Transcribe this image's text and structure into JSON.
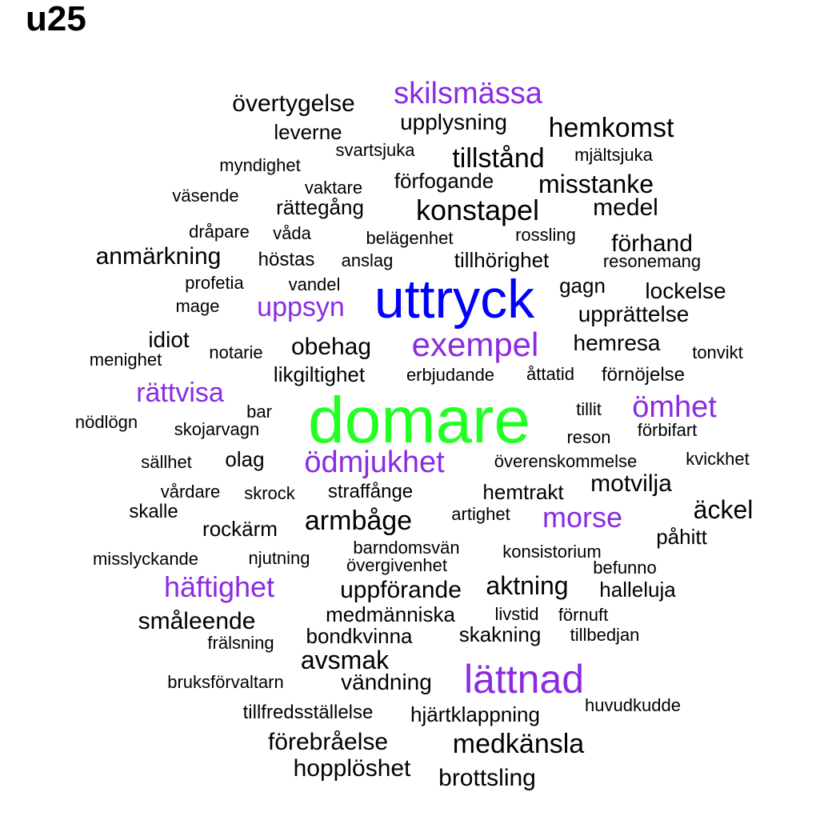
{
  "title": "u25",
  "colors": {
    "top": "#22ff22",
    "second": "#0000ff",
    "highlight": "#8a2be2",
    "default": "#000000"
  },
  "words": [
    {
      "text": "skilsmässa",
      "tier": "highlight"
    },
    {
      "text": "övertygelse",
      "tier": "default"
    },
    {
      "text": "upplysning",
      "tier": "default"
    },
    {
      "text": "hemkomst",
      "tier": "default"
    },
    {
      "text": "leverne",
      "tier": "default"
    },
    {
      "text": "svartsjuka",
      "tier": "default"
    },
    {
      "text": "tillstånd",
      "tier": "default"
    },
    {
      "text": "mjältsjuka",
      "tier": "default"
    },
    {
      "text": "myndighet",
      "tier": "default"
    },
    {
      "text": "förfogande",
      "tier": "default"
    },
    {
      "text": "misstanke",
      "tier": "default"
    },
    {
      "text": "väsende",
      "tier": "default"
    },
    {
      "text": "vaktare",
      "tier": "default"
    },
    {
      "text": "rättegång",
      "tier": "default"
    },
    {
      "text": "konstapel",
      "tier": "default"
    },
    {
      "text": "medel",
      "tier": "default"
    },
    {
      "text": "dråpare",
      "tier": "default"
    },
    {
      "text": "våda",
      "tier": "default"
    },
    {
      "text": "belägenhet",
      "tier": "default"
    },
    {
      "text": "rossling",
      "tier": "default"
    },
    {
      "text": "förhand",
      "tier": "default"
    },
    {
      "text": "anmärkning",
      "tier": "default"
    },
    {
      "text": "höstas",
      "tier": "default"
    },
    {
      "text": "anslag",
      "tier": "default"
    },
    {
      "text": "tillhörighet",
      "tier": "default"
    },
    {
      "text": "resonemang",
      "tier": "default"
    },
    {
      "text": "profetia",
      "tier": "default"
    },
    {
      "text": "vandel",
      "tier": "default"
    },
    {
      "text": "uttryck",
      "tier": "second"
    },
    {
      "text": "gagn",
      "tier": "default"
    },
    {
      "text": "lockelse",
      "tier": "default"
    },
    {
      "text": "mage",
      "tier": "default"
    },
    {
      "text": "uppsyn",
      "tier": "highlight"
    },
    {
      "text": "upprättelse",
      "tier": "default"
    },
    {
      "text": "idiot",
      "tier": "default"
    },
    {
      "text": "obehag",
      "tier": "default"
    },
    {
      "text": "exempel",
      "tier": "highlight"
    },
    {
      "text": "hemresa",
      "tier": "default"
    },
    {
      "text": "menighet",
      "tier": "default"
    },
    {
      "text": "notarie",
      "tier": "default"
    },
    {
      "text": "tonvikt",
      "tier": "default"
    },
    {
      "text": "likgiltighet",
      "tier": "default"
    },
    {
      "text": "erbjudande",
      "tier": "default"
    },
    {
      "text": "åttatid",
      "tier": "default"
    },
    {
      "text": "förnöjelse",
      "tier": "default"
    },
    {
      "text": "rättvisa",
      "tier": "highlight"
    },
    {
      "text": "ömhet",
      "tier": "highlight"
    },
    {
      "text": "tillit",
      "tier": "default"
    },
    {
      "text": "nödlögn",
      "tier": "default"
    },
    {
      "text": "bar",
      "tier": "default"
    },
    {
      "text": "domare",
      "tier": "top"
    },
    {
      "text": "skojarvagn",
      "tier": "default"
    },
    {
      "text": "förbifart",
      "tier": "default"
    },
    {
      "text": "reson",
      "tier": "default"
    },
    {
      "text": "sällhet",
      "tier": "default"
    },
    {
      "text": "olag",
      "tier": "default"
    },
    {
      "text": "ödmjukhet",
      "tier": "highlight"
    },
    {
      "text": "överenskommelse",
      "tier": "default"
    },
    {
      "text": "kvickhet",
      "tier": "default"
    },
    {
      "text": "vårdare",
      "tier": "default"
    },
    {
      "text": "skrock",
      "tier": "default"
    },
    {
      "text": "straffånge",
      "tier": "default"
    },
    {
      "text": "hemtrakt",
      "tier": "default"
    },
    {
      "text": "motvilja",
      "tier": "default"
    },
    {
      "text": "skalle",
      "tier": "default"
    },
    {
      "text": "armbåge",
      "tier": "default"
    },
    {
      "text": "artighet",
      "tier": "default"
    },
    {
      "text": "morse",
      "tier": "highlight"
    },
    {
      "text": "äckel",
      "tier": "default"
    },
    {
      "text": "rockärm",
      "tier": "default"
    },
    {
      "text": "påhitt",
      "tier": "default"
    },
    {
      "text": "barndomsvän",
      "tier": "default"
    },
    {
      "text": "konsistorium",
      "tier": "default"
    },
    {
      "text": "misslyckande",
      "tier": "default"
    },
    {
      "text": "njutning",
      "tier": "default"
    },
    {
      "text": "övergivenhet",
      "tier": "default"
    },
    {
      "text": "befunno",
      "tier": "default"
    },
    {
      "text": "häftighet",
      "tier": "highlight"
    },
    {
      "text": "aktning",
      "tier": "default"
    },
    {
      "text": "uppförande",
      "tier": "default"
    },
    {
      "text": "halleluja",
      "tier": "default"
    },
    {
      "text": "medmänniska",
      "tier": "default"
    },
    {
      "text": "livstid",
      "tier": "default"
    },
    {
      "text": "förnuft",
      "tier": "default"
    },
    {
      "text": "småleende",
      "tier": "default"
    },
    {
      "text": "bondkvinna",
      "tier": "default"
    },
    {
      "text": "skakning",
      "tier": "default"
    },
    {
      "text": "tillbedjan",
      "tier": "default"
    },
    {
      "text": "frälsning",
      "tier": "default"
    },
    {
      "text": "avsmak",
      "tier": "default"
    },
    {
      "text": "lättnad",
      "tier": "highlight"
    },
    {
      "text": "bruksförvaltarn",
      "tier": "default"
    },
    {
      "text": "vändning",
      "tier": "default"
    },
    {
      "text": "huvudkudde",
      "tier": "default"
    },
    {
      "text": "tillfredsställelse",
      "tier": "default"
    },
    {
      "text": "hjärtklappning",
      "tier": "default"
    },
    {
      "text": "förebråelse",
      "tier": "default"
    },
    {
      "text": "medkänsla",
      "tier": "default"
    },
    {
      "text": "hopplöshet",
      "tier": "default"
    },
    {
      "text": "brottsling",
      "tier": "default"
    }
  ]
}
